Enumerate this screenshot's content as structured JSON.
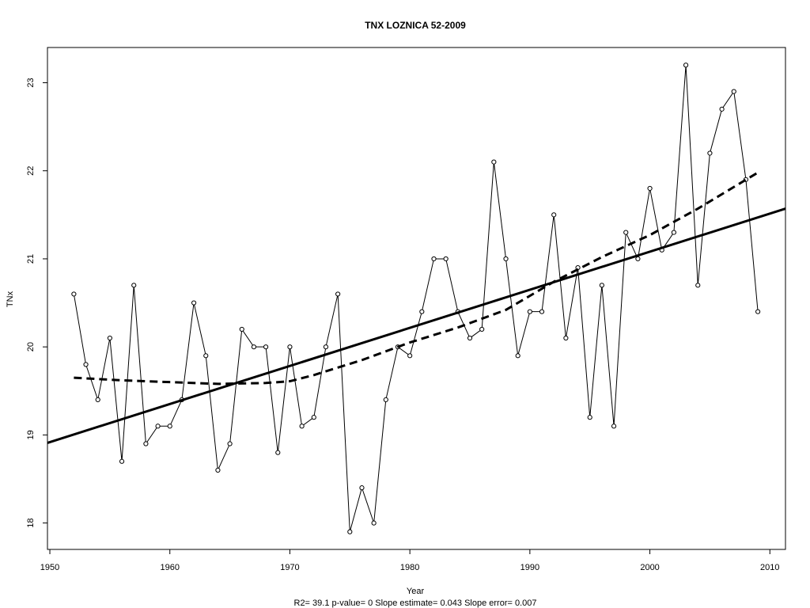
{
  "chart_data": {
    "type": "line",
    "title": "TNX    LOZNICA 52-2009",
    "xlabel": "Year",
    "ylabel": "TNx",
    "stats_line": "R2= 39.1  p-value= 0  Slope estimate= 0.043  Slope error= 0.007",
    "xlim": [
      1949.8,
      2011.3
    ],
    "ylim": [
      17.7,
      23.4
    ],
    "x_ticks": [
      1950,
      1960,
      1970,
      1980,
      1990,
      2000,
      2010
    ],
    "y_ticks": [
      18,
      19,
      20,
      21,
      22,
      23
    ],
    "grid": false,
    "series": [
      {
        "style": "line-with-open-circles",
        "x": [
          1952,
          1953,
          1954,
          1955,
          1956,
          1957,
          1958,
          1959,
          1960,
          1961,
          1962,
          1963,
          1964,
          1965,
          1966,
          1967,
          1968,
          1969,
          1970,
          1971,
          1972,
          1973,
          1974,
          1975,
          1976,
          1977,
          1978,
          1979,
          1980,
          1981,
          1982,
          1983,
          1984,
          1985,
          1986,
          1987,
          1988,
          1989,
          1990,
          1991,
          1992,
          1993,
          1994,
          1995,
          1996,
          1997,
          1998,
          1999,
          2000,
          2001,
          2002,
          2003,
          2004,
          2005,
          2006,
          2007,
          2008,
          2009
        ],
        "values": [
          20.6,
          19.8,
          19.4,
          20.1,
          18.7,
          20.7,
          18.9,
          19.1,
          19.1,
          19.4,
          20.5,
          19.9,
          18.6,
          18.9,
          20.2,
          20.0,
          20.0,
          18.8,
          20.0,
          19.1,
          19.2,
          20.0,
          20.6,
          17.9,
          18.4,
          18.0,
          19.4,
          20.0,
          19.9,
          20.4,
          21.0,
          21.0,
          20.4,
          20.1,
          20.2,
          22.1,
          21.0,
          19.9,
          20.4,
          20.4,
          21.5,
          20.1,
          20.9,
          19.2,
          20.7,
          19.1,
          21.3,
          21.0,
          21.8,
          21.1,
          21.3,
          23.2,
          20.7,
          22.2,
          22.7,
          22.9,
          21.9,
          20.4
        ]
      },
      {
        "style": "linear-trend-solid",
        "x": [
          1949.8,
          2011.3
        ],
        "values": [
          18.91,
          21.57
        ]
      },
      {
        "style": "smoothed-dashed",
        "x": [
          1952,
          1956,
          1960,
          1964,
          1968,
          1970,
          1972,
          1976,
          1980,
          1984,
          1988,
          1992,
          1996,
          2000,
          2004,
          2009
        ],
        "values": [
          19.65,
          19.62,
          19.6,
          19.58,
          19.59,
          19.61,
          19.68,
          19.85,
          20.05,
          20.22,
          20.42,
          20.74,
          21.02,
          21.27,
          21.57,
          21.98
        ]
      }
    ]
  }
}
